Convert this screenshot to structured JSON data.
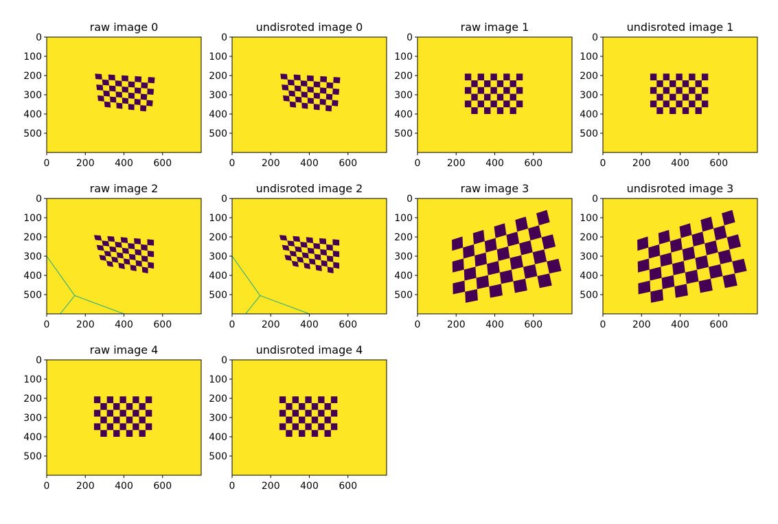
{
  "figure": {
    "background": "#ffffff",
    "image_background_color": "#fde725",
    "square_color": "#440154",
    "line_color": "#21a685",
    "panel_count": 10
  },
  "chart_data": [
    {
      "type": "heatmap",
      "title": "raw image 0",
      "xlim": [
        0,
        800
      ],
      "ylim": [
        600,
        0
      ],
      "xticks": [
        "0",
        "200",
        "400",
        "600"
      ],
      "yticks": [
        "0",
        "100",
        "200",
        "300",
        "400",
        "500"
      ],
      "pattern": {
        "rows": 6,
        "cols": 9,
        "corners": {
          "tl": [
            250,
            190
          ],
          "tr": [
            560,
            210
          ],
          "br": [
            545,
            390
          ],
          "bl": [
            270,
            360
          ]
        }
      }
    },
    {
      "type": "heatmap",
      "title": "undisroted image 0",
      "xlim": [
        0,
        800
      ],
      "ylim": [
        600,
        0
      ],
      "xticks": [
        "0",
        "200",
        "400",
        "600"
      ],
      "yticks": [
        "0",
        "100",
        "200",
        "300",
        "400",
        "500"
      ],
      "pattern": {
        "rows": 6,
        "cols": 9,
        "corners": {
          "tl": [
            250,
            190
          ],
          "tr": [
            560,
            210
          ],
          "br": [
            545,
            390
          ],
          "bl": [
            270,
            360
          ]
        }
      }
    },
    {
      "type": "heatmap",
      "title": "raw image 1",
      "xlim": [
        0,
        800
      ],
      "ylim": [
        600,
        0
      ],
      "xticks": [
        "0",
        "200",
        "400",
        "600"
      ],
      "yticks": [
        "0",
        "100",
        "200",
        "300",
        "400",
        "500"
      ],
      "pattern": {
        "rows": 6,
        "cols": 9,
        "corners": {
          "tl": [
            245,
            190
          ],
          "tr": [
            545,
            190
          ],
          "br": [
            545,
            400
          ],
          "bl": [
            245,
            400
          ]
        }
      }
    },
    {
      "type": "heatmap",
      "title": "undisroted image 1",
      "xlim": [
        0,
        800
      ],
      "ylim": [
        600,
        0
      ],
      "xticks": [
        "0",
        "200",
        "400",
        "600"
      ],
      "yticks": [
        "0",
        "100",
        "200",
        "300",
        "400",
        "500"
      ],
      "pattern": {
        "rows": 6,
        "cols": 9,
        "corners": {
          "tl": [
            245,
            190
          ],
          "tr": [
            545,
            190
          ],
          "br": [
            545,
            400
          ],
          "bl": [
            245,
            400
          ]
        }
      }
    },
    {
      "type": "heatmap",
      "title": "raw image 2",
      "xlim": [
        0,
        800
      ],
      "ylim": [
        600,
        0
      ],
      "xticks": [
        "0",
        "200",
        "400",
        "600"
      ],
      "yticks": [
        "0",
        "100",
        "200",
        "300",
        "400",
        "500"
      ],
      "pattern": {
        "rows": 6,
        "cols": 9,
        "corners": {
          "tl": [
            245,
            190
          ],
          "tr": [
            555,
            215
          ],
          "br": [
            555,
            395
          ],
          "bl": [
            285,
            345
          ]
        }
      },
      "lines": [
        [
          [
            0,
            300
          ],
          [
            145,
            505
          ]
        ],
        [
          [
            145,
            505
          ],
          [
            70,
            600
          ]
        ],
        [
          [
            145,
            505
          ],
          [
            400,
            600
          ]
        ]
      ]
    },
    {
      "type": "heatmap",
      "title": "undisroted image 2",
      "xlim": [
        0,
        800
      ],
      "ylim": [
        600,
        0
      ],
      "xticks": [
        "0",
        "200",
        "400",
        "600"
      ],
      "yticks": [
        "0",
        "100",
        "200",
        "300",
        "400",
        "500"
      ],
      "pattern": {
        "rows": 6,
        "cols": 9,
        "corners": {
          "tl": [
            245,
            190
          ],
          "tr": [
            555,
            215
          ],
          "br": [
            555,
            395
          ],
          "bl": [
            285,
            345
          ]
        }
      },
      "lines": [
        [
          [
            0,
            300
          ],
          [
            145,
            505
          ]
        ],
        [
          [
            145,
            505
          ],
          [
            70,
            600
          ]
        ],
        [
          [
            145,
            505
          ],
          [
            400,
            600
          ]
        ]
      ]
    },
    {
      "type": "heatmap",
      "title": "raw image 3",
      "xlim": [
        0,
        800
      ],
      "ylim": [
        600,
        0
      ],
      "xticks": [
        "0",
        "200",
        "400",
        "600"
      ],
      "yticks": [
        "0",
        "100",
        "200",
        "300",
        "400",
        "500"
      ],
      "pattern": {
        "rows": 6,
        "cols": 9,
        "corners": {
          "tl": [
            178,
            215
          ],
          "tr": [
            670,
            60
          ],
          "br": [
            760,
            440
          ],
          "bl": [
            185,
            555
          ]
        }
      }
    },
    {
      "type": "heatmap",
      "title": "undisroted image 3",
      "xlim": [
        0,
        800
      ],
      "ylim": [
        600,
        0
      ],
      "xticks": [
        "0",
        "200",
        "400",
        "600"
      ],
      "yticks": [
        "0",
        "100",
        "200",
        "300",
        "400",
        "500"
      ],
      "pattern": {
        "rows": 6,
        "cols": 9,
        "corners": {
          "tl": [
            178,
            215
          ],
          "tr": [
            670,
            60
          ],
          "br": [
            760,
            440
          ],
          "bl": [
            185,
            555
          ]
        }
      }
    },
    {
      "type": "heatmap",
      "title": "raw image 4",
      "xlim": [
        0,
        800
      ],
      "ylim": [
        600,
        0
      ],
      "xticks": [
        "0",
        "200",
        "400",
        "600"
      ],
      "yticks": [
        "0",
        "100",
        "200",
        "300",
        "400",
        "500"
      ],
      "pattern": {
        "rows": 6,
        "cols": 9,
        "corners": {
          "tl": [
            245,
            190
          ],
          "tr": [
            545,
            190
          ],
          "br": [
            545,
            400
          ],
          "bl": [
            245,
            400
          ]
        }
      }
    },
    {
      "type": "heatmap",
      "title": "undisroted image 4",
      "xlim": [
        0,
        800
      ],
      "ylim": [
        600,
        0
      ],
      "xticks": [
        "0",
        "200",
        "400",
        "600"
      ],
      "yticks": [
        "0",
        "100",
        "200",
        "300",
        "400",
        "500"
      ],
      "pattern": {
        "rows": 6,
        "cols": 9,
        "corners": {
          "tl": [
            245,
            190
          ],
          "tr": [
            545,
            190
          ],
          "br": [
            545,
            400
          ],
          "bl": [
            245,
            400
          ]
        }
      }
    }
  ]
}
